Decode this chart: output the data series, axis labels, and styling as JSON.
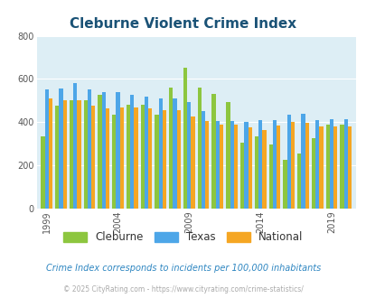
{
  "title": "Cleburne Violent Crime Index",
  "subtitle": "Crime Index corresponds to incidents per 100,000 inhabitants",
  "copyright": "© 2025 CityRating.com - https://www.cityrating.com/crime-statistics/",
  "years": [
    1999,
    2000,
    2001,
    2002,
    2003,
    2004,
    2005,
    2006,
    2007,
    2008,
    2009,
    2010,
    2011,
    2012,
    2013,
    2014,
    2015,
    2016,
    2017,
    2018,
    2019,
    2020
  ],
  "cleburne": [
    335,
    475,
    500,
    500,
    525,
    435,
    480,
    480,
    435,
    560,
    650,
    560,
    530,
    495,
    305,
    335,
    295,
    225,
    255,
    325,
    390,
    390
  ],
  "texas": [
    550,
    555,
    580,
    550,
    540,
    540,
    525,
    520,
    510,
    510,
    495,
    450,
    405,
    405,
    400,
    410,
    410,
    435,
    440,
    410,
    415,
    415
  ],
  "national": [
    510,
    500,
    500,
    475,
    465,
    470,
    470,
    465,
    455,
    455,
    425,
    405,
    390,
    390,
    375,
    365,
    385,
    400,
    395,
    380,
    380,
    380
  ],
  "cleburne_color": "#8dc63f",
  "texas_color": "#4da6e8",
  "national_color": "#f5a623",
  "title_color": "#1a5276",
  "subtitle_color": "#2e86c1",
  "copyright_color": "#aaaaaa",
  "ylim": [
    0,
    800
  ],
  "yticks": [
    0,
    200,
    400,
    600,
    800
  ],
  "bar_width": 0.27,
  "grid_color": "#ffffff",
  "axis_bg": "#ddeef5",
  "tick_years": [
    1999,
    2004,
    2009,
    2014,
    2019
  ]
}
